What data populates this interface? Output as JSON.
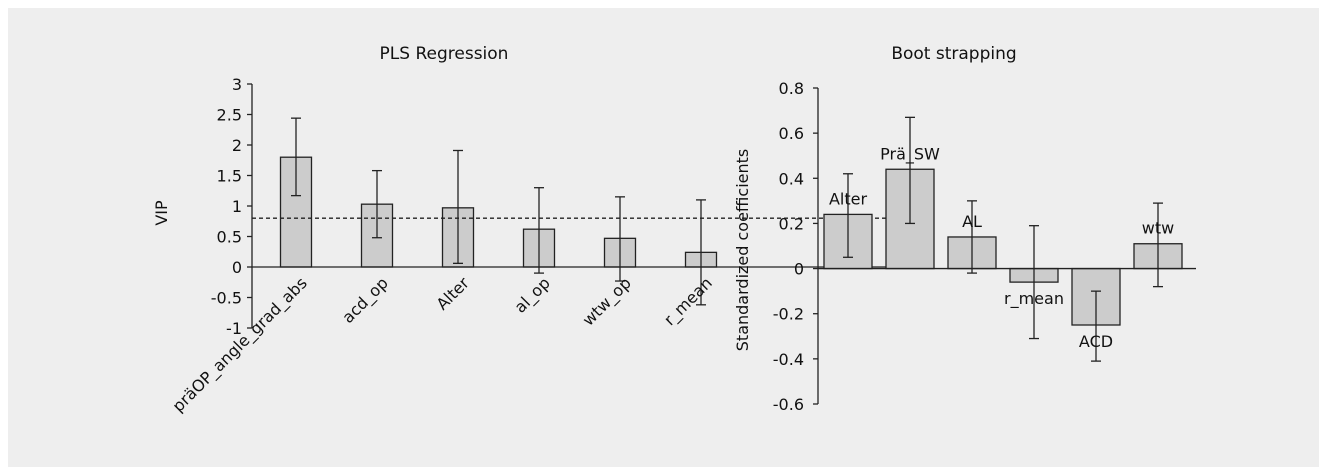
{
  "chart_data": [
    {
      "type": "bar",
      "title": "PLS Regression",
      "ylabel": "VIP",
      "xlabel": "",
      "ylim": [
        -1,
        3
      ],
      "yticks": [
        3,
        2.5,
        2,
        1.5,
        1,
        0.5,
        0,
        -0.5,
        -1
      ],
      "categories": [
        "präOP_angle_grad_abs",
        "acd_op",
        "Alter",
        "al_op",
        "wtw_op",
        "r_mean"
      ],
      "values": [
        1.8,
        1.03,
        0.97,
        0.62,
        0.47,
        0.24
      ],
      "error_low": [
        1.17,
        0.48,
        0.06,
        -0.1,
        -0.23,
        -0.62
      ],
      "error_high": [
        2.44,
        1.58,
        1.91,
        1.3,
        1.15,
        1.1
      ],
      "reference_line": 0.8,
      "grid": false,
      "bar_color": "#cccccc"
    },
    {
      "type": "bar",
      "title": "Boot strapping",
      "ylabel": "Standardized coefficients",
      "xlabel": "",
      "ylim": [
        -0.6,
        0.8
      ],
      "yticks": [
        0.8,
        0.6,
        0.4,
        0.2,
        0,
        -0.2,
        -0.4,
        -0.6
      ],
      "categories": [
        "Alter",
        "Prä_SW",
        "AL",
        "r_mean",
        "ACD",
        "wtw"
      ],
      "values": [
        0.24,
        0.44,
        0.14,
        -0.06,
        -0.25,
        0.11
      ],
      "error_low": [
        0.05,
        0.2,
        -0.02,
        -0.31,
        -0.41,
        -0.08
      ],
      "error_high": [
        0.42,
        0.67,
        0.3,
        0.19,
        -0.1,
        0.29
      ],
      "grid": false,
      "bar_color": "#cccccc"
    }
  ]
}
